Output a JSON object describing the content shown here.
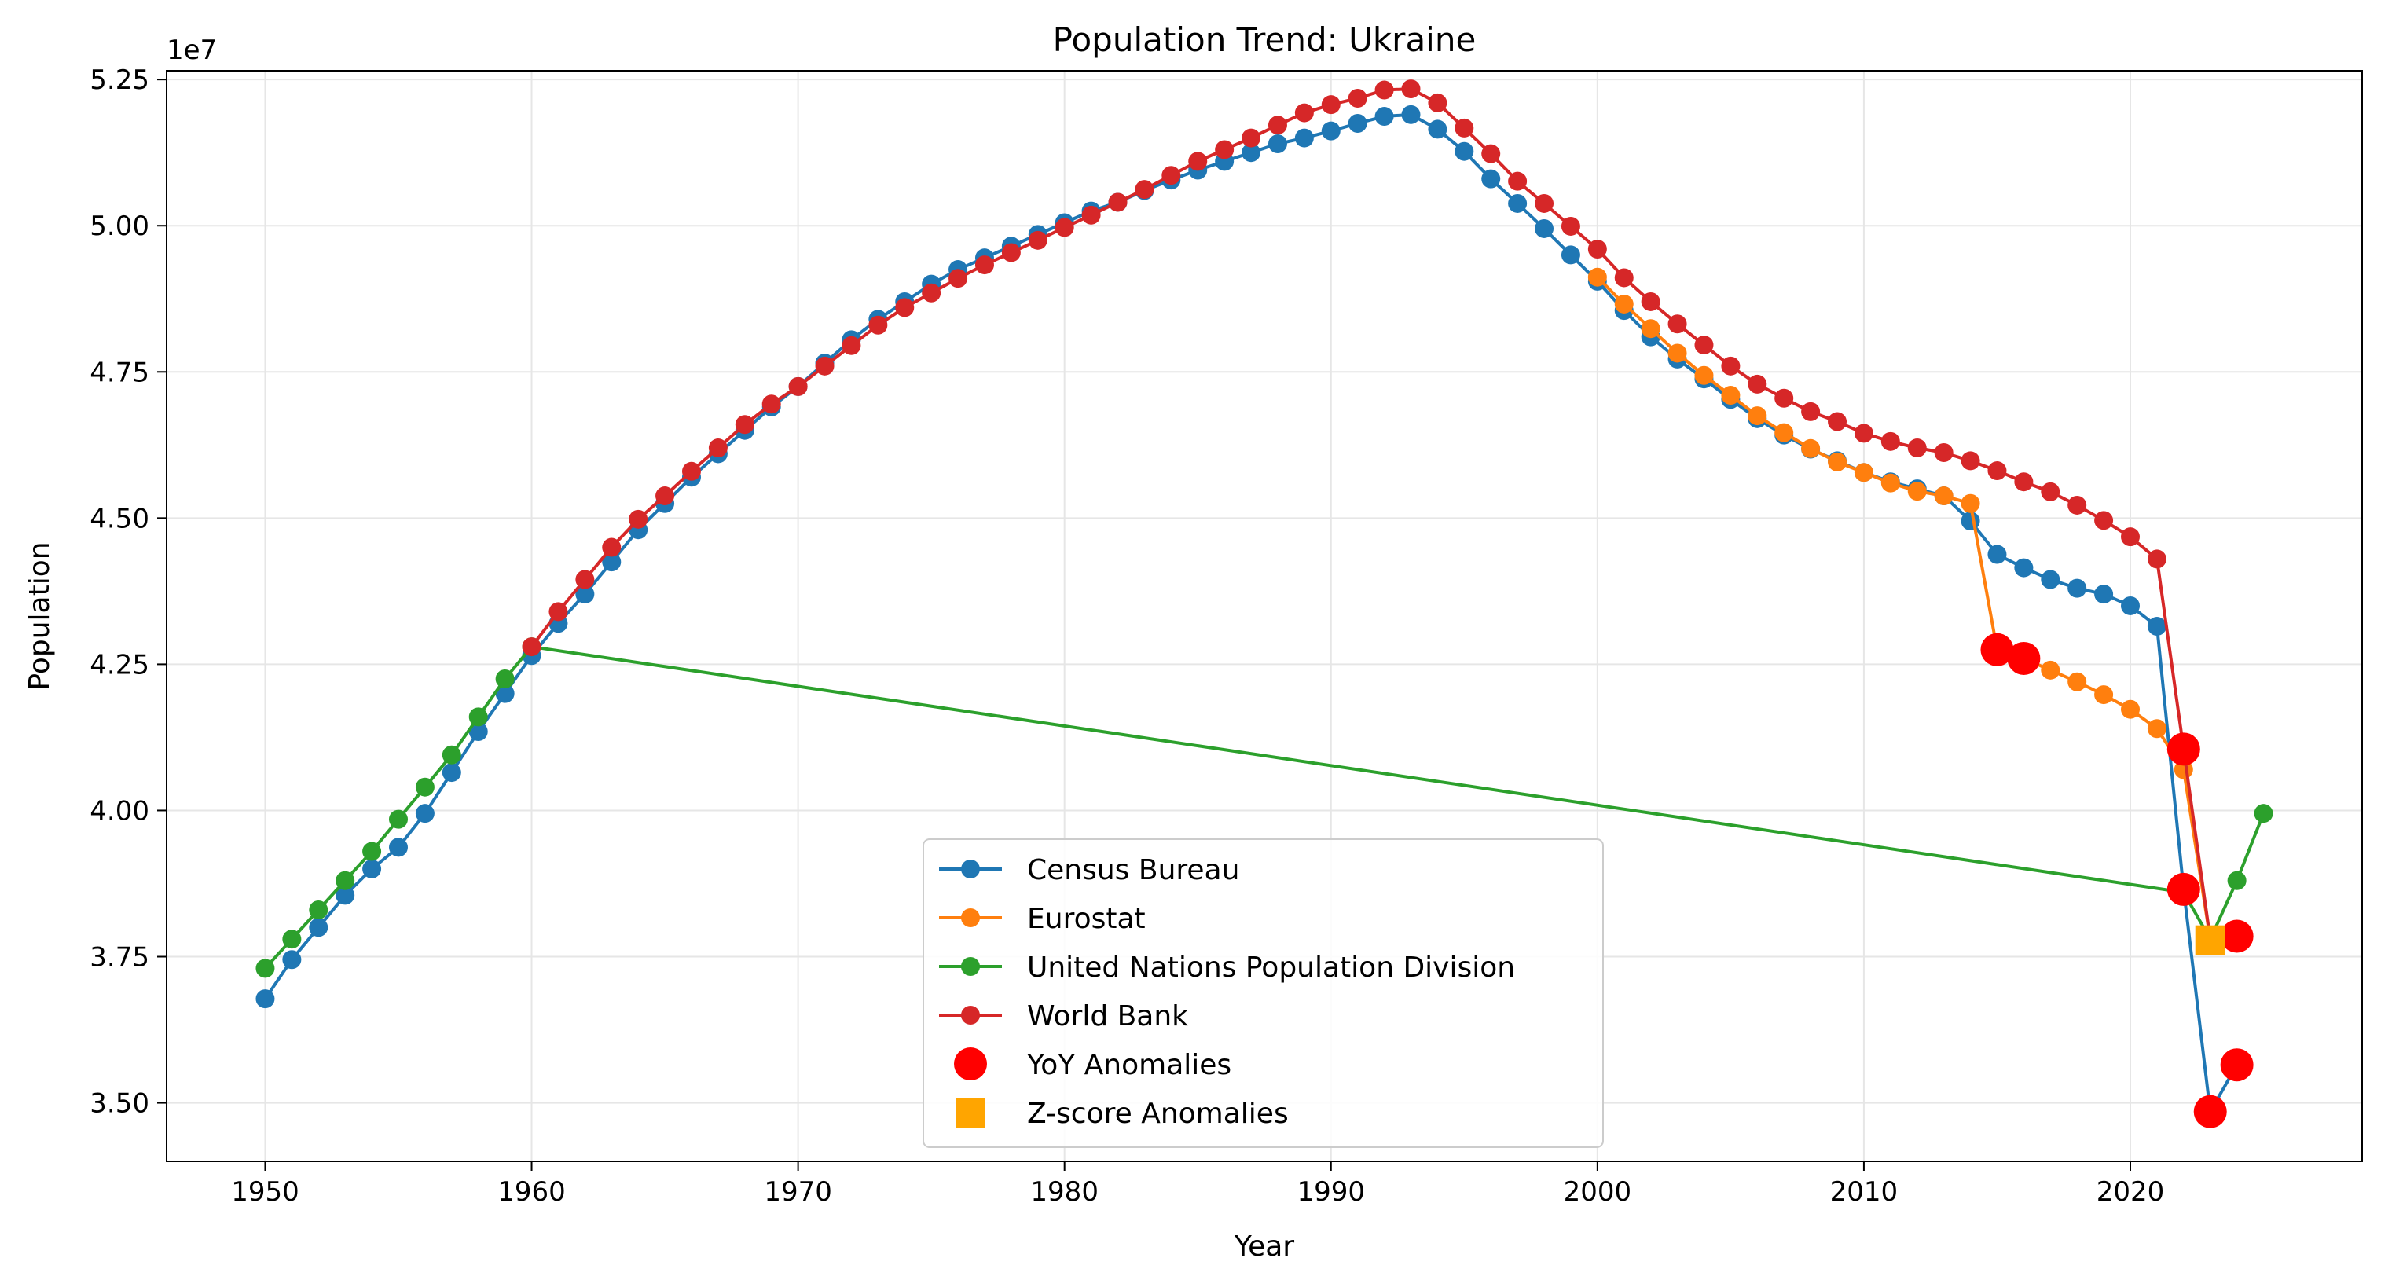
{
  "chart_data": {
    "type": "line",
    "title": "Population Trend: Ukraine",
    "xlabel": "Year",
    "ylabel": "Population",
    "y_scale_label": "1e7",
    "xlim": [
      1946.3,
      2028.7
    ],
    "ylim": [
      34000000,
      52650000
    ],
    "x_ticks": [
      1950,
      1960,
      1970,
      1980,
      1990,
      2000,
      2010,
      2020
    ],
    "y_ticks": [
      35000000,
      37500000,
      40000000,
      42500000,
      45000000,
      47500000,
      50000000,
      52500000
    ],
    "y_tick_labels": [
      "3.50",
      "3.75",
      "4.00",
      "4.25",
      "4.50",
      "4.75",
      "5.00",
      "5.25"
    ],
    "grid": true,
    "legend_position": "lower-center",
    "series": [
      {
        "name": "Census Bureau",
        "color": "#1f77b4",
        "x": [
          1950,
          1951,
          1952,
          1953,
          1954,
          1955,
          1956,
          1957,
          1958,
          1959,
          1960,
          1961,
          1962,
          1963,
          1964,
          1965,
          1966,
          1967,
          1968,
          1969,
          1970,
          1971,
          1972,
          1973,
          1974,
          1975,
          1976,
          1977,
          1978,
          1979,
          1980,
          1981,
          1982,
          1983,
          1984,
          1985,
          1986,
          1987,
          1988,
          1989,
          1990,
          1991,
          1992,
          1993,
          1994,
          1995,
          1996,
          1997,
          1998,
          1999,
          2000,
          2001,
          2002,
          2003,
          2004,
          2005,
          2006,
          2007,
          2008,
          2009,
          2010,
          2011,
          2012,
          2013,
          2014,
          2015,
          2016,
          2017,
          2018,
          2019,
          2020,
          2021,
          2022,
          2023,
          2024
        ],
        "y": [
          36780000,
          37450000,
          38000000,
          38550000,
          39000000,
          39370000,
          39950000,
          40650000,
          41350000,
          42000000,
          42650000,
          43200000,
          43700000,
          44250000,
          44800000,
          45250000,
          45700000,
          46100000,
          46500000,
          46900000,
          47250000,
          47650000,
          48050000,
          48400000,
          48700000,
          49000000,
          49250000,
          49450000,
          49650000,
          49850000,
          50050000,
          50250000,
          50400000,
          50600000,
          50780000,
          50950000,
          51100000,
          51250000,
          51400000,
          51500000,
          51620000,
          51750000,
          51870000,
          51900000,
          51650000,
          51270000,
          50800000,
          50380000,
          49950000,
          49500000,
          49050000,
          48550000,
          48100000,
          47720000,
          47380000,
          47030000,
          46700000,
          46420000,
          46180000,
          45980000,
          45780000,
          45620000,
          45500000,
          45380000,
          44950000,
          44380000,
          44150000,
          43950000,
          43800000,
          43700000,
          43500000,
          43150000,
          38650000,
          34850000,
          35650000
        ]
      },
      {
        "name": "Eurostat",
        "color": "#ff7f0e",
        "x": [
          2000,
          2001,
          2002,
          2003,
          2004,
          2005,
          2006,
          2007,
          2008,
          2009,
          2010,
          2011,
          2012,
          2013,
          2014,
          2015,
          2016,
          2017,
          2018,
          2019,
          2020,
          2021,
          2022,
          2023
        ],
        "y": [
          49120000,
          48660000,
          48240000,
          47820000,
          47440000,
          47100000,
          46750000,
          46460000,
          46190000,
          45960000,
          45780000,
          45600000,
          45460000,
          45380000,
          45250000,
          42750000,
          42600000,
          42400000,
          42200000,
          41980000,
          41730000,
          41400000,
          40700000,
          37800000
        ]
      },
      {
        "name": "United Nations Population Division",
        "color": "#2ca02c",
        "x": [
          1950,
          1951,
          1952,
          1953,
          1954,
          1955,
          1956,
          1957,
          1958,
          1959,
          1960,
          2022,
          2023,
          2024,
          2025
        ],
        "y": [
          37300000,
          37800000,
          38300000,
          38800000,
          39300000,
          39850000,
          40400000,
          40950000,
          41600000,
          42250000,
          42800000,
          38600000,
          37800000,
          38800000,
          39950000
        ]
      },
      {
        "name": "World Bank",
        "color": "#d62728",
        "x": [
          1960,
          1961,
          1962,
          1963,
          1964,
          1965,
          1966,
          1967,
          1968,
          1969,
          1970,
          1971,
          1972,
          1973,
          1974,
          1975,
          1976,
          1977,
          1978,
          1979,
          1980,
          1981,
          1982,
          1983,
          1984,
          1985,
          1986,
          1987,
          1988,
          1989,
          1990,
          1991,
          1992,
          1993,
          1994,
          1995,
          1996,
          1997,
          1998,
          1999,
          2000,
          2001,
          2002,
          2003,
          2004,
          2005,
          2006,
          2007,
          2008,
          2009,
          2010,
          2011,
          2012,
          2013,
          2014,
          2015,
          2016,
          2017,
          2018,
          2019,
          2020,
          2021,
          2022,
          2023
        ],
        "y": [
          42800000,
          43400000,
          43950000,
          44500000,
          44980000,
          45380000,
          45800000,
          46200000,
          46600000,
          46950000,
          47250000,
          47600000,
          47950000,
          48300000,
          48600000,
          48850000,
          49100000,
          49330000,
          49540000,
          49750000,
          49970000,
          50180000,
          50400000,
          50620000,
          50860000,
          51100000,
          51300000,
          51500000,
          51720000,
          51930000,
          52070000,
          52180000,
          52320000,
          52340000,
          52100000,
          51670000,
          51230000,
          50760000,
          50380000,
          49990000,
          49600000,
          49110000,
          48700000,
          48320000,
          47960000,
          47600000,
          47290000,
          47050000,
          46820000,
          46650000,
          46450000,
          46310000,
          46200000,
          46120000,
          45980000,
          45810000,
          45620000,
          45450000,
          45220000,
          44960000,
          44680000,
          44300000,
          41050000,
          37800000
        ]
      }
    ],
    "anomalies": [
      {
        "name": "YoY Anomalies",
        "color": "#ff0000",
        "marker": "circle",
        "x": [
          2015,
          2016,
          2022,
          2022,
          2023,
          2024,
          2024
        ],
        "y": [
          42750000,
          42600000,
          41050000,
          38650000,
          34850000,
          35650000,
          37850000
        ]
      },
      {
        "name": "Z-score Anomalies",
        "color": "#ffa500",
        "marker": "square",
        "x": [
          2023
        ],
        "y": [
          37780000
        ]
      }
    ]
  }
}
